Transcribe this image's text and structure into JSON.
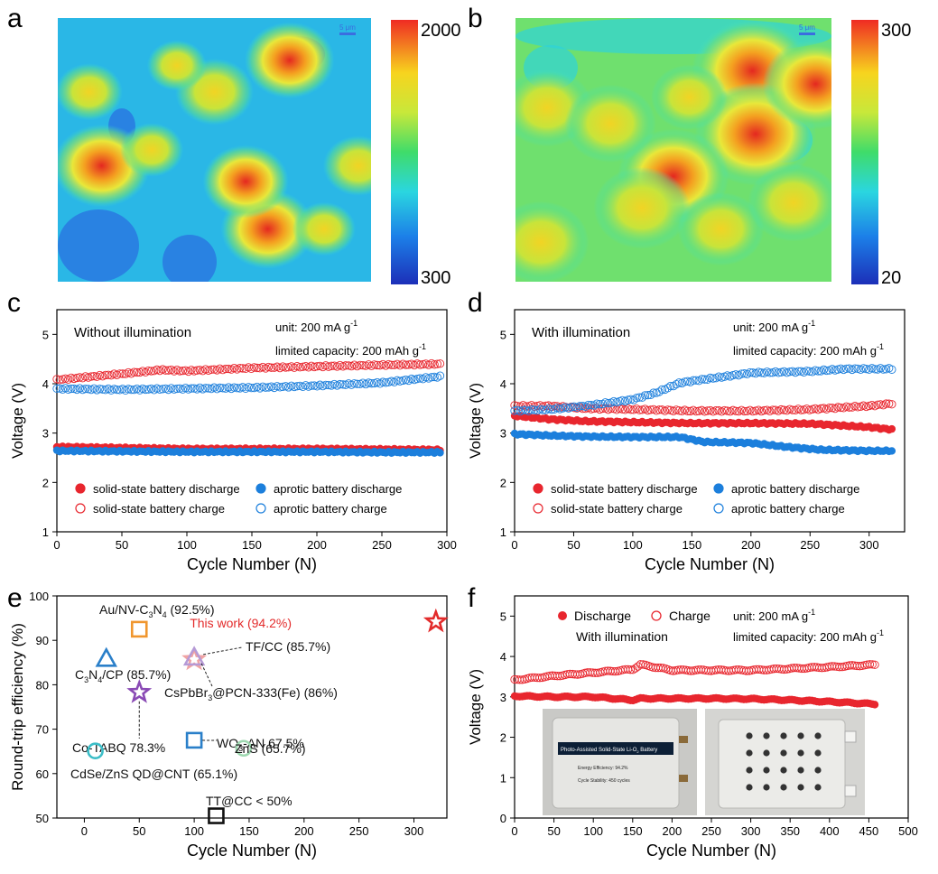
{
  "chart_data": [
    {
      "panel": "a",
      "type": "heatmap",
      "colorbar": {
        "max": 2000,
        "min": 300,
        "max_label": "2000",
        "min_label": "300"
      },
      "scale_bar_label": "5 μm",
      "hotspots": [
        {
          "x": 0.14,
          "y": 0.56,
          "v": 1.0
        },
        {
          "x": 0.74,
          "y": 0.16,
          "v": 0.9
        },
        {
          "x": 0.5,
          "y": 0.28,
          "v": 0.75
        },
        {
          "x": 0.67,
          "y": 0.8,
          "v": 0.95
        },
        {
          "x": 0.6,
          "y": 0.62,
          "v": 0.85
        },
        {
          "x": 0.1,
          "y": 0.28,
          "v": 0.6
        },
        {
          "x": 0.96,
          "y": 0.56,
          "v": 0.65
        },
        {
          "x": 0.38,
          "y": 0.18,
          "v": 0.5
        },
        {
          "x": 0.3,
          "y": 0.5,
          "v": 0.55
        },
        {
          "x": 0.85,
          "y": 0.8,
          "v": 0.55
        }
      ]
    },
    {
      "panel": "b",
      "type": "heatmap",
      "colorbar": {
        "max": 300,
        "min": 20,
        "max_label": "300",
        "min_label": "20"
      },
      "scale_bar_label": "5 μm",
      "hotspots": [
        {
          "x": 0.75,
          "y": 0.2,
          "v": 1.0
        },
        {
          "x": 0.76,
          "y": 0.44,
          "v": 1.0
        },
        {
          "x": 0.95,
          "y": 0.25,
          "v": 0.85
        },
        {
          "x": 0.5,
          "y": 0.6,
          "v": 0.9
        },
        {
          "x": 0.4,
          "y": 0.72,
          "v": 0.75
        },
        {
          "x": 0.1,
          "y": 0.34,
          "v": 0.7
        },
        {
          "x": 0.08,
          "y": 0.85,
          "v": 0.75
        },
        {
          "x": 0.65,
          "y": 0.8,
          "v": 0.65
        },
        {
          "x": 0.3,
          "y": 0.4,
          "v": 0.7
        },
        {
          "x": 0.88,
          "y": 0.7,
          "v": 0.7
        },
        {
          "x": 0.55,
          "y": 0.3,
          "v": 0.55
        }
      ]
    },
    {
      "panel": "c",
      "type": "scatter",
      "annotation": "Without illumination",
      "unit_label": "unit: 200 mA g",
      "unit_sup": "-1",
      "capacity_label": "limited capacity: 200 mAh g",
      "capacity_sup": "-1",
      "xlabel": "Cycle Number (N)",
      "ylabel": "Voltage (V)",
      "xlim": [
        0,
        300
      ],
      "ylim": [
        1,
        5.5
      ],
      "xticks": [
        0,
        50,
        100,
        150,
        200,
        250,
        300
      ],
      "yticks": [
        1,
        2,
        3,
        4,
        5
      ],
      "series": [
        {
          "name": "solid-state battery discharge",
          "color": "#e8262e",
          "filled": true,
          "x": [
            0,
            50,
            100,
            150,
            200,
            250,
            296
          ],
          "y": [
            2.72,
            2.7,
            2.68,
            2.68,
            2.68,
            2.67,
            2.66
          ]
        },
        {
          "name": "aprotic battery discharge",
          "color": "#1c7fdc",
          "filled": true,
          "x": [
            0,
            50,
            100,
            150,
            200,
            250,
            296
          ],
          "y": [
            2.64,
            2.63,
            2.62,
            2.62,
            2.62,
            2.61,
            2.61
          ]
        },
        {
          "name": "solid-state battery charge",
          "color": "#e8262e",
          "filled": false,
          "x": [
            0,
            50,
            80,
            100,
            150,
            200,
            250,
            296
          ],
          "y": [
            4.08,
            4.2,
            4.28,
            4.26,
            4.32,
            4.35,
            4.38,
            4.4
          ]
        },
        {
          "name": "aprotic battery charge",
          "color": "#1c7fdc",
          "filled": false,
          "x": [
            0,
            50,
            100,
            150,
            200,
            250,
            296
          ],
          "y": [
            3.9,
            3.88,
            3.9,
            3.92,
            3.96,
            4.02,
            4.15
          ]
        }
      ]
    },
    {
      "panel": "d",
      "type": "scatter",
      "annotation": "With illumination",
      "unit_label": "unit: 200 mA g",
      "unit_sup": "-1",
      "capacity_label": "limited capacity: 200 mAh g",
      "capacity_sup": "-1",
      "xlabel": "Cycle Number (N)",
      "ylabel": "Voltage (V)",
      "xlim": [
        0,
        330
      ],
      "ylim": [
        1,
        5.5
      ],
      "xticks": [
        0,
        50,
        100,
        150,
        200,
        250,
        300
      ],
      "yticks": [
        1,
        2,
        3,
        4,
        5
      ],
      "series": [
        {
          "name": "solid-state battery discharge",
          "color": "#e8262e",
          "filled": true,
          "x": [
            0,
            30,
            60,
            100,
            150,
            200,
            250,
            300,
            320
          ],
          "y": [
            3.35,
            3.28,
            3.24,
            3.22,
            3.2,
            3.2,
            3.19,
            3.12,
            3.07
          ]
        },
        {
          "name": "aprotic battery discharge",
          "color": "#1c7fdc",
          "filled": true,
          "x": [
            0,
            30,
            60,
            100,
            140,
            160,
            200,
            230,
            260,
            300,
            320
          ],
          "y": [
            2.98,
            2.95,
            2.93,
            2.92,
            2.92,
            2.82,
            2.8,
            2.72,
            2.66,
            2.64,
            2.64
          ]
        },
        {
          "name": "solid-state battery charge",
          "color": "#e8262e",
          "filled": false,
          "x": [
            0,
            30,
            60,
            100,
            150,
            200,
            250,
            300,
            320
          ],
          "y": [
            3.55,
            3.55,
            3.5,
            3.48,
            3.45,
            3.45,
            3.48,
            3.55,
            3.6
          ]
        },
        {
          "name": "aprotic battery charge",
          "color": "#1c7fdc",
          "filled": false,
          "x": [
            0,
            30,
            60,
            100,
            120,
            140,
            170,
            200,
            250,
            280,
            320
          ],
          "y": [
            3.45,
            3.48,
            3.55,
            3.68,
            3.82,
            4.02,
            4.12,
            4.22,
            4.25,
            4.3,
            4.3
          ]
        }
      ]
    },
    {
      "panel": "e",
      "type": "scatter",
      "xlabel": "Cycle Number (N)",
      "ylabel": "Round-trip efficiency (%)",
      "xlim": [
        -25,
        330
      ],
      "ylim": [
        50,
        100
      ],
      "xticks": [
        0,
        50,
        100,
        150,
        200,
        250,
        300
      ],
      "yticks": [
        50,
        60,
        70,
        80,
        90,
        100
      ],
      "points": [
        {
          "label": "This work (94.2%)",
          "x": 320,
          "y": 94.2,
          "marker": "star",
          "color": "#e32b2b"
        },
        {
          "label_main": "Au/NV-C",
          "label_sub": "3",
          "label_mid": "N",
          "label_sub2": "4",
          "label_tail": " (92.5%)",
          "x": 50,
          "y": 92.5,
          "marker": "square",
          "color": "#f0962e"
        },
        {
          "label_main": "C",
          "label_sub": "3",
          "label_mid": "N",
          "label_sub2": "4",
          "label_tail": "/CP (85.7%)",
          "x": 20,
          "y": 85.7,
          "marker": "triangle",
          "color": "#2a7fc9"
        },
        {
          "label": "TF/CC (85.7%)",
          "x": 100,
          "y": 85.7,
          "marker": "star",
          "color": "#f0a3a3"
        },
        {
          "label_main": "CsPbBr",
          "label_sub": "3",
          "label_tail": "@PCN-333(Fe) (86%)",
          "x": 100,
          "y": 86,
          "marker": "triangle",
          "color": "#b69ad6"
        },
        {
          "label": "Co-TABQ 78.3%",
          "x": 50,
          "y": 78.3,
          "marker": "star",
          "color": "#8a4ab5"
        },
        {
          "label_main": "WO",
          "label_sub": "3",
          "label_tail": "-AN 67.5%",
          "x": 100,
          "y": 67.5,
          "marker": "square",
          "color": "#2a7fc9"
        },
        {
          "label": "ZnS (65.7%)",
          "x": 145,
          "y": 65.7,
          "marker": "circle",
          "color": "#9ed8b0"
        },
        {
          "label": "CdSe/ZnS QD@CNT (65.1%)",
          "x": 10,
          "y": 65.1,
          "marker": "circle",
          "color": "#3bbdc7"
        },
        {
          "label": "TT@CC < 50%",
          "x": 120,
          "y": 50.5,
          "marker": "square",
          "color": "#111111"
        }
      ]
    },
    {
      "panel": "f",
      "type": "scatter",
      "legend_discharge": "Discharge",
      "legend_charge": "Charge",
      "annotation": "With illumination",
      "unit_label": "unit: 200 mA g",
      "unit_sup": "-1",
      "capacity_label": "limited capacity: 200 mAh g",
      "capacity_sup": "-1",
      "xlabel": "Cycle Number (N)",
      "ylabel": "Voltage (V)",
      "xlim": [
        0,
        500
      ],
      "ylim": [
        0,
        5.5
      ],
      "xticks": [
        0,
        50,
        100,
        150,
        200,
        250,
        300,
        350,
        400,
        450,
        500
      ],
      "yticks": [
        0,
        1,
        2,
        3,
        4,
        5
      ],
      "series": [
        {
          "name": "Discharge",
          "color": "#e8262e",
          "filled": true,
          "x": [
            0,
            50,
            100,
            150,
            160,
            200,
            250,
            300,
            350,
            400,
            460
          ],
          "y": [
            3.02,
            3.0,
            3.0,
            2.92,
            2.96,
            2.96,
            2.96,
            2.95,
            2.92,
            2.88,
            2.82
          ]
        },
        {
          "name": "Charge",
          "color": "#e8262e",
          "filled": false,
          "x": [
            0,
            50,
            100,
            150,
            160,
            200,
            250,
            300,
            350,
            400,
            460
          ],
          "y": [
            3.42,
            3.52,
            3.6,
            3.68,
            3.8,
            3.66,
            3.66,
            3.66,
            3.7,
            3.74,
            3.8
          ]
        }
      ],
      "inset_photo": {
        "card_title": "Photo-Assisted Solid-State Li-O",
        "card_title_sub": "2",
        "card_title_tail": " Battery",
        "line1": "Energy Efficiency: 94.2%",
        "line2": "Cycle Stability: 450 cycles"
      }
    }
  ],
  "panel_labels": {
    "a": "a",
    "b": "b",
    "c": "c",
    "d": "d",
    "e": "e",
    "f": "f"
  }
}
